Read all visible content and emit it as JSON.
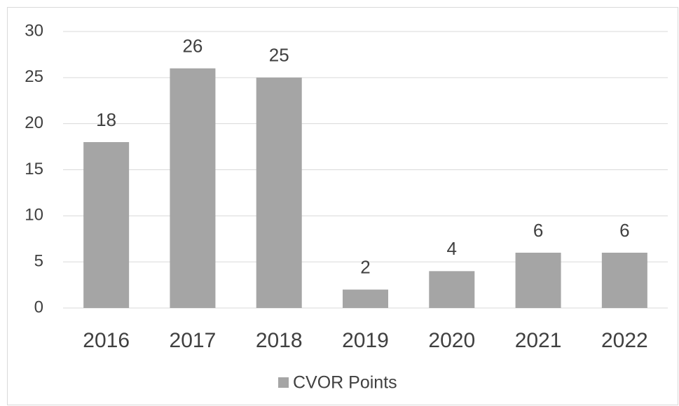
{
  "chart_data": {
    "type": "bar",
    "categories": [
      "2016",
      "2017",
      "2018",
      "2019",
      "2020",
      "2021",
      "2022"
    ],
    "series": [
      {
        "name": "CVOR Points",
        "color": "#a5a5a5",
        "values": [
          18,
          26,
          25,
          2,
          4,
          6,
          6
        ]
      }
    ],
    "ylim": [
      0,
      30
    ],
    "yticks": [
      0,
      5,
      10,
      15,
      20,
      25,
      30
    ],
    "grid": true,
    "legend": "bottom"
  }
}
